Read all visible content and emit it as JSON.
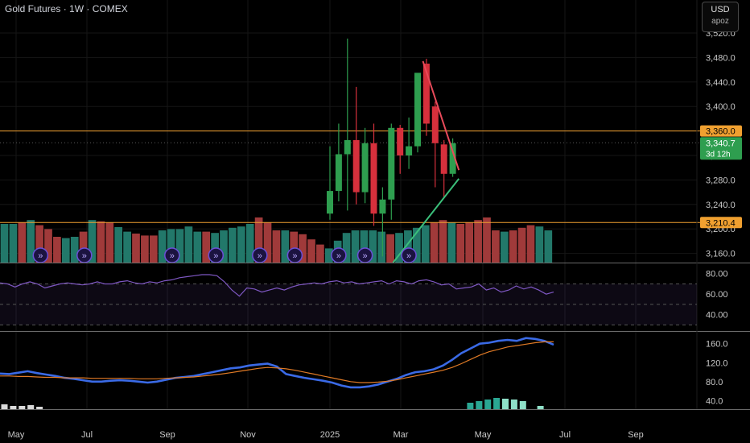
{
  "header": {
    "title": "Gold Futures · 1W · COMEX",
    "currency": "USD",
    "unit": "apoz"
  },
  "colors": {
    "up": "#2e9e4f",
    "down": "#d6303c",
    "vol_up": "#22786a",
    "vol_down": "#a03a3a",
    "hline": "#f0a030",
    "rsi": "#7e57c2",
    "ma_fast": "#3a6ae6",
    "ma_slow": "#e07a25",
    "trend_down": "#e84a5a",
    "trend_up": "#3bbf7a",
    "event_badge": "#6b4fd8"
  },
  "chart_data": [
    {
      "type": "candlestick",
      "title": "Gold Futures · 1W · COMEX",
      "yaxis_ticks": [
        "3,520.0",
        "3,480.0",
        "3,440.0",
        "3,400.0",
        "3,360.0",
        "3,320.0",
        "3,280.0",
        "3,240.0",
        "3,200.0",
        "3,160.0"
      ],
      "ylim": [
        3145,
        3545
      ],
      "xaxis_ticks": [
        "May",
        "Jul",
        "Sep",
        "Nov",
        "2025",
        "Mar",
        "May",
        "Jul",
        "Sep"
      ],
      "price_labels": [
        {
          "label": "3,360.0",
          "kind": "line",
          "value": 3360
        },
        {
          "label": "3,340.7",
          "kind": "last",
          "value": 3340.7,
          "sublabel": "3d 12h"
        },
        {
          "label": "3,210.4",
          "kind": "line",
          "value": 3210.4
        }
      ],
      "candles": [
        {
          "x": 35,
          "o": 3225,
          "h": 3335,
          "l": 3215,
          "c": 3262
        },
        {
          "x": 36,
          "o": 3262,
          "h": 3372,
          "l": 3245,
          "c": 3322
        },
        {
          "x": 37,
          "o": 3322,
          "h": 3511,
          "l": 3230,
          "c": 3345
        },
        {
          "x": 38,
          "o": 3345,
          "h": 3432,
          "l": 3240,
          "c": 3260
        },
        {
          "x": 39,
          "o": 3260,
          "h": 3365,
          "l": 3242,
          "c": 3340
        },
        {
          "x": 40,
          "o": 3340,
          "h": 3372,
          "l": 3205,
          "c": 3225
        },
        {
          "x": 41,
          "o": 3225,
          "h": 3268,
          "l": 3155,
          "c": 3248
        },
        {
          "x": 42,
          "o": 3248,
          "h": 3372,
          "l": 3215,
          "c": 3365
        },
        {
          "x": 43,
          "o": 3365,
          "h": 3370,
          "l": 3290,
          "c": 3320
        },
        {
          "x": 44,
          "o": 3320,
          "h": 3382,
          "l": 3298,
          "c": 3335
        },
        {
          "x": 45,
          "o": 3335,
          "h": 3452,
          "l": 3325,
          "c": 3455
        },
        {
          "x": 46,
          "o": 3470,
          "h": 3478,
          "l": 3352,
          "c": 3372
        },
        {
          "x": 47,
          "o": 3400,
          "h": 3408,
          "l": 3268,
          "c": 3340
        },
        {
          "x": 48,
          "o": 3338,
          "h": 3345,
          "l": 3250,
          "c": 3290
        },
        {
          "x": 49,
          "o": 3290,
          "h": 3348,
          "l": 3285,
          "c": 3340
        }
      ],
      "volume": [
        {
          "v": 0.6,
          "dir": "up"
        },
        {
          "v": 0.6,
          "dir": "up"
        },
        {
          "v": 0.62,
          "dir": "down"
        },
        {
          "v": 0.66,
          "dir": "up"
        },
        {
          "v": 0.58,
          "dir": "down"
        },
        {
          "v": 0.52,
          "dir": "down"
        },
        {
          "v": 0.4,
          "dir": "down"
        },
        {
          "v": 0.38,
          "dir": "up"
        },
        {
          "v": 0.4,
          "dir": "up"
        },
        {
          "v": 0.48,
          "dir": "down"
        },
        {
          "v": 0.66,
          "dir": "up"
        },
        {
          "v": 0.64,
          "dir": "down"
        },
        {
          "v": 0.62,
          "dir": "down"
        },
        {
          "v": 0.55,
          "dir": "up"
        },
        {
          "v": 0.48,
          "dir": "up"
        },
        {
          "v": 0.45,
          "dir": "down"
        },
        {
          "v": 0.42,
          "dir": "down"
        },
        {
          "v": 0.42,
          "dir": "down"
        },
        {
          "v": 0.5,
          "dir": "up"
        },
        {
          "v": 0.52,
          "dir": "up"
        },
        {
          "v": 0.52,
          "dir": "up"
        },
        {
          "v": 0.56,
          "dir": "up"
        },
        {
          "v": 0.48,
          "dir": "up"
        },
        {
          "v": 0.48,
          "dir": "down"
        },
        {
          "v": 0.46,
          "dir": "up"
        },
        {
          "v": 0.5,
          "dir": "up"
        },
        {
          "v": 0.54,
          "dir": "up"
        },
        {
          "v": 0.56,
          "dir": "up"
        },
        {
          "v": 0.6,
          "dir": "up"
        },
        {
          "v": 0.7,
          "dir": "down"
        },
        {
          "v": 0.62,
          "dir": "down"
        },
        {
          "v": 0.5,
          "dir": "down"
        },
        {
          "v": 0.5,
          "dir": "up"
        },
        {
          "v": 0.48,
          "dir": "down"
        },
        {
          "v": 0.44,
          "dir": "down"
        },
        {
          "v": 0.36,
          "dir": "down"
        },
        {
          "v": 0.28,
          "dir": "down"
        },
        {
          "v": 0.22,
          "dir": "up"
        },
        {
          "v": 0.34,
          "dir": "up"
        },
        {
          "v": 0.46,
          "dir": "up"
        },
        {
          "v": 0.5,
          "dir": "up"
        },
        {
          "v": 0.5,
          "dir": "up"
        },
        {
          "v": 0.5,
          "dir": "up"
        },
        {
          "v": 0.48,
          "dir": "up"
        },
        {
          "v": 0.44,
          "dir": "down"
        },
        {
          "v": 0.46,
          "dir": "up"
        },
        {
          "v": 0.5,
          "dir": "up"
        },
        {
          "v": 0.54,
          "dir": "up"
        },
        {
          "v": 0.58,
          "dir": "up"
        },
        {
          "v": 0.62,
          "dir": "down"
        },
        {
          "v": 0.66,
          "dir": "down"
        },
        {
          "v": 0.62,
          "dir": "up"
        },
        {
          "v": 0.6,
          "dir": "down"
        },
        {
          "v": 0.62,
          "dir": "down"
        },
        {
          "v": 0.66,
          "dir": "down"
        },
        {
          "v": 0.7,
          "dir": "down"
        },
        {
          "v": 0.5,
          "dir": "down"
        },
        {
          "v": 0.48,
          "dir": "up"
        },
        {
          "v": 0.5,
          "dir": "down"
        },
        {
          "v": 0.54,
          "dir": "down"
        },
        {
          "v": 0.58,
          "dir": "down"
        },
        {
          "v": 0.56,
          "dir": "up"
        },
        {
          "v": 0.5,
          "dir": "up"
        }
      ],
      "trendlines": [
        {
          "color_key": "trend_down",
          "x1": 45.6,
          "y1": 3474,
          "x2": 49.7,
          "y2": 3296
        },
        {
          "color_key": "trend_up",
          "x1": 42.2,
          "y1": 3145,
          "x2": 49.7,
          "y2": 3282
        }
      ],
      "event_badges": [
        2,
        7,
        17,
        22,
        27,
        31,
        36,
        39,
        44
      ]
    },
    {
      "type": "line",
      "name": "RSI",
      "yaxis_ticks": [
        "80.00",
        "60.00",
        "40.00"
      ],
      "ylim": [
        24,
        90
      ],
      "bands": [
        70,
        50,
        30
      ],
      "values": [
        71,
        70,
        67,
        70,
        72,
        70,
        66,
        68,
        70,
        71,
        70,
        69,
        70,
        72,
        70,
        70,
        72,
        73,
        71,
        70,
        72,
        71,
        73,
        74,
        76,
        77,
        78,
        79,
        79,
        78,
        72,
        64,
        58,
        66,
        65,
        62,
        64,
        66,
        64,
        67,
        69,
        70,
        71,
        70,
        72,
        73,
        71,
        72,
        70,
        71,
        72,
        73,
        70,
        73,
        72,
        70,
        73,
        74,
        72,
        69,
        70,
        65,
        66,
        67,
        70,
        64,
        66,
        62,
        64,
        68,
        65,
        67,
        64,
        60,
        62
      ]
    },
    {
      "type": "line",
      "name": "Moving averages",
      "yaxis_ticks": [
        "160.0",
        "120.0",
        "80.0",
        "40.0"
      ],
      "ylim": [
        22,
        185
      ],
      "series": [
        {
          "color_key": "ma_fast",
          "values": [
            97,
            96,
            99,
            102,
            98,
            95,
            92,
            88,
            86,
            83,
            80,
            80,
            82,
            83,
            82,
            80,
            78,
            80,
            84,
            88,
            90,
            92,
            96,
            100,
            104,
            108,
            110,
            114,
            116,
            118,
            112,
            96,
            92,
            88,
            85,
            82,
            78,
            72,
            68,
            68,
            70,
            74,
            80,
            86,
            94,
            100,
            102,
            106,
            114,
            126,
            140,
            150,
            160,
            162,
            166,
            168,
            166,
            172,
            170,
            166,
            158
          ]
        },
        {
          "color_key": "ma_slow",
          "values": [
            92,
            92,
            91,
            91,
            90,
            89,
            89,
            88,
            88,
            88,
            87,
            87,
            87,
            87,
            87,
            86,
            86,
            86,
            87,
            88,
            89,
            90,
            92,
            94,
            96,
            99,
            102,
            105,
            108,
            110,
            109,
            107,
            104,
            100,
            96,
            92,
            88,
            84,
            80,
            78,
            78,
            79,
            81,
            84,
            88,
            92,
            96,
            100,
            104,
            110,
            118,
            127,
            136,
            143,
            148,
            153,
            156,
            159,
            162,
            164,
            164
          ]
        }
      ],
      "histogram": {
        "values": [
          6,
          4,
          4,
          5,
          3,
          0,
          0,
          0,
          0,
          0,
          0,
          0,
          8,
          10,
          12,
          14,
          13,
          12,
          10,
          0,
          4
        ],
        "positions": [
          0,
          1,
          2,
          3,
          4,
          44,
          45,
          46,
          47,
          48,
          49,
          50,
          51,
          52,
          53,
          54,
          55,
          56,
          57,
          58,
          59
        ]
      }
    }
  ]
}
